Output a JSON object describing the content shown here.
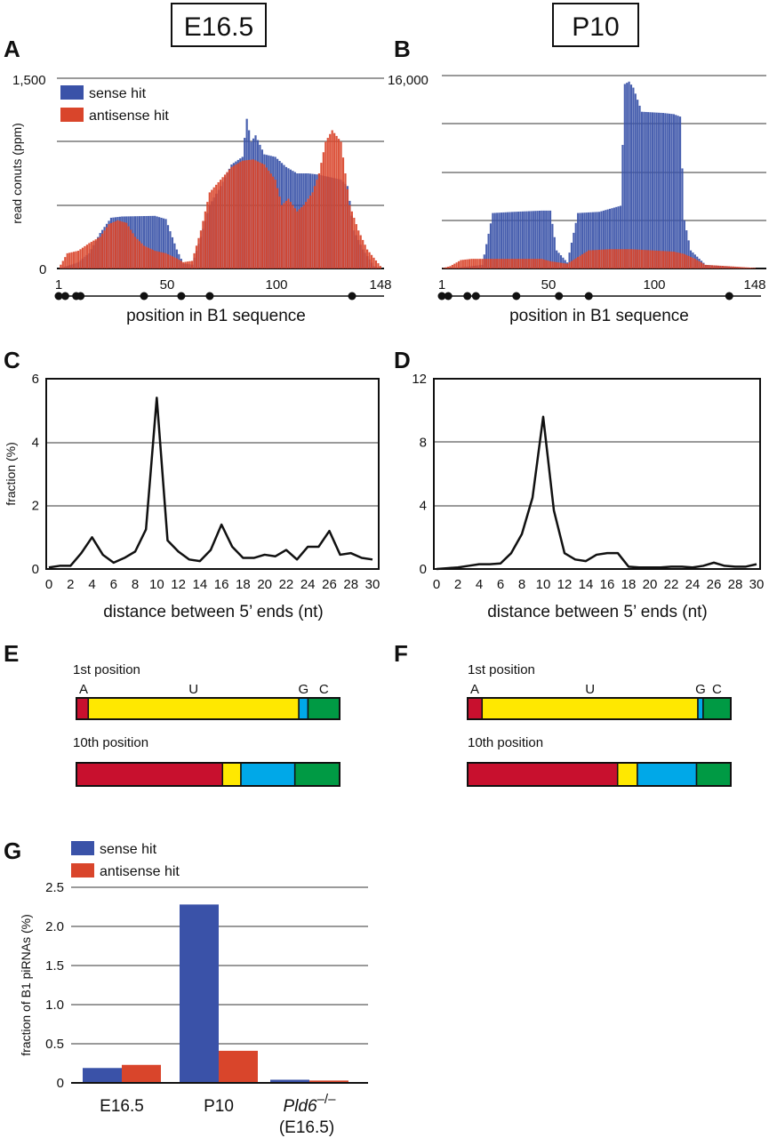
{
  "colors": {
    "sense": "#3a52a8",
    "antisense": "#d9452b",
    "A": "#c8102e",
    "U": "#ffe800",
    "G": "#00a8e8",
    "C": "#009a44",
    "grid": "#9a9a9a",
    "line": "#111111"
  },
  "headers": {
    "left": "E16.5",
    "right": "P10"
  },
  "legend": {
    "sense": "sense hit",
    "antisense": "antisense hit"
  },
  "chart_data": [
    {
      "panel": "A",
      "type": "bar",
      "title": "E16.5",
      "ylabel": "read conuts (ppm)",
      "xlabel": "position in B1 sequence",
      "ylim": [
        0,
        1500
      ],
      "yticks_shown": [
        "0",
        "1,500"
      ],
      "xticks": [
        "1",
        "50",
        "100",
        "148"
      ],
      "series": [
        {
          "name": "sense hit",
          "profile": [
            [
              1,
              0
            ],
            [
              5,
              20
            ],
            [
              10,
              50
            ],
            [
              15,
              120
            ],
            [
              20,
              280
            ],
            [
              25,
              400
            ],
            [
              30,
              410
            ],
            [
              45,
              415
            ],
            [
              50,
              390
            ],
            [
              55,
              150
            ],
            [
              58,
              40
            ],
            [
              62,
              30
            ],
            [
              66,
              250
            ],
            [
              70,
              500
            ],
            [
              75,
              650
            ],
            [
              80,
              820
            ],
            [
              85,
              880
            ],
            [
              87,
              1180
            ],
            [
              89,
              1000
            ],
            [
              91,
              1050
            ],
            [
              95,
              900
            ],
            [
              100,
              880
            ],
            [
              105,
              800
            ],
            [
              110,
              750
            ],
            [
              115,
              750
            ],
            [
              120,
              740
            ],
            [
              125,
              720
            ],
            [
              130,
              700
            ],
            [
              133,
              650
            ],
            [
              136,
              300
            ],
            [
              140,
              150
            ],
            [
              145,
              20
            ],
            [
              148,
              0
            ]
          ]
        },
        {
          "name": "antisense hit",
          "profile": [
            [
              1,
              0
            ],
            [
              5,
              120
            ],
            [
              10,
              140
            ],
            [
              15,
              200
            ],
            [
              20,
              250
            ],
            [
              24,
              350
            ],
            [
              28,
              380
            ],
            [
              32,
              360
            ],
            [
              36,
              250
            ],
            [
              40,
              180
            ],
            [
              45,
              140
            ],
            [
              50,
              120
            ],
            [
              55,
              80
            ],
            [
              58,
              50
            ],
            [
              62,
              60
            ],
            [
              66,
              300
            ],
            [
              70,
              600
            ],
            [
              75,
              700
            ],
            [
              80,
              800
            ],
            [
              85,
              850
            ],
            [
              90,
              860
            ],
            [
              95,
              820
            ],
            [
              100,
              700
            ],
            [
              103,
              500
            ],
            [
              106,
              550
            ],
            [
              110,
              450
            ],
            [
              113,
              500
            ],
            [
              117,
              600
            ],
            [
              120,
              750
            ],
            [
              123,
              1000
            ],
            [
              126,
              1090
            ],
            [
              130,
              1000
            ],
            [
              134,
              500
            ],
            [
              138,
              300
            ],
            [
              142,
              150
            ],
            [
              148,
              20
            ]
          ]
        }
      ],
      "markers": [
        1,
        4,
        9,
        11,
        40,
        57,
        70,
        135
      ]
    },
    {
      "panel": "B",
      "type": "bar",
      "title": "P10",
      "ylabel": "",
      "xlabel": "position in B1 sequence",
      "ylim": [
        0,
        16000
      ],
      "yticks_shown": [
        "16,000"
      ],
      "xticks": [
        "1",
        "50",
        "100",
        "148"
      ],
      "series": [
        {
          "name": "sense hit",
          "profile": [
            [
              1,
              0
            ],
            [
              10,
              100
            ],
            [
              20,
              300
            ],
            [
              25,
              4600
            ],
            [
              35,
              4700
            ],
            [
              48,
              4800
            ],
            [
              52,
              4800
            ],
            [
              55,
              1500
            ],
            [
              60,
              500
            ],
            [
              65,
              4600
            ],
            [
              75,
              4700
            ],
            [
              85,
              5200
            ],
            [
              87,
              15300
            ],
            [
              89,
              15500
            ],
            [
              91,
              15000
            ],
            [
              95,
              13000
            ],
            [
              105,
              12900
            ],
            [
              110,
              12800
            ],
            [
              113,
              12600
            ],
            [
              115,
              4000
            ],
            [
              118,
              1500
            ],
            [
              125,
              300
            ],
            [
              148,
              0
            ]
          ]
        },
        {
          "name": "antisense hit",
          "profile": [
            [
              1,
              0
            ],
            [
              5,
              200
            ],
            [
              10,
              700
            ],
            [
              15,
              800
            ],
            [
              25,
              800
            ],
            [
              35,
              800
            ],
            [
              48,
              800
            ],
            [
              52,
              600
            ],
            [
              60,
              400
            ],
            [
              70,
              1500
            ],
            [
              80,
              1600
            ],
            [
              90,
              1600
            ],
            [
              100,
              1500
            ],
            [
              110,
              1400
            ],
            [
              115,
              1200
            ],
            [
              120,
              800
            ],
            [
              125,
              300
            ],
            [
              135,
              200
            ],
            [
              148,
              50
            ]
          ]
        }
      ],
      "markers": [
        1,
        4,
        13,
        17,
        36,
        56,
        70,
        136
      ]
    },
    {
      "panel": "C",
      "type": "line",
      "title": "",
      "ylabel": "fraction (%)",
      "xlabel": "distance between 5’ ends (nt)",
      "ylim": [
        0,
        6
      ],
      "yticks": [
        0,
        2,
        4,
        6
      ],
      "xticks": [
        0,
        2,
        4,
        6,
        8,
        10,
        12,
        14,
        16,
        18,
        20,
        22,
        24,
        26,
        28,
        30
      ],
      "x": [
        0,
        1,
        2,
        3,
        4,
        5,
        6,
        7,
        8,
        9,
        10,
        11,
        12,
        13,
        14,
        15,
        16,
        17,
        18,
        19,
        20,
        21,
        22,
        23,
        24,
        25,
        26,
        27,
        28,
        29,
        30
      ],
      "y": [
        0.05,
        0.1,
        0.1,
        0.5,
        1.0,
        0.45,
        0.2,
        0.35,
        0.55,
        1.25,
        5.4,
        0.9,
        0.55,
        0.3,
        0.25,
        0.6,
        1.4,
        0.7,
        0.35,
        0.35,
        0.45,
        0.4,
        0.6,
        0.3,
        0.7,
        0.7,
        1.2,
        0.45,
        0.5,
        0.35,
        0.3
      ]
    },
    {
      "panel": "D",
      "type": "line",
      "title": "",
      "ylabel": "",
      "xlabel": "distance between 5’ ends (nt)",
      "ylim": [
        0,
        12
      ],
      "yticks": [
        0,
        4,
        8,
        12
      ],
      "xticks": [
        0,
        2,
        4,
        6,
        8,
        10,
        12,
        14,
        16,
        18,
        20,
        22,
        24,
        26,
        28,
        30
      ],
      "x": [
        0,
        1,
        2,
        3,
        4,
        5,
        6,
        7,
        8,
        9,
        10,
        11,
        12,
        13,
        14,
        15,
        16,
        17,
        18,
        19,
        20,
        21,
        22,
        23,
        24,
        25,
        26,
        27,
        28,
        29,
        30
      ],
      "y": [
        0.0,
        0.05,
        0.1,
        0.2,
        0.3,
        0.3,
        0.35,
        1.0,
        2.2,
        4.5,
        9.6,
        3.7,
        1.0,
        0.6,
        0.5,
        0.9,
        1.0,
        1.0,
        0.15,
        0.1,
        0.1,
        0.1,
        0.15,
        0.15,
        0.1,
        0.2,
        0.4,
        0.2,
        0.15,
        0.15,
        0.3
      ]
    },
    {
      "panel": "E",
      "type": "stacked-bar",
      "rows": [
        {
          "label": "1st position",
          "values": {
            "A": 4.5,
            "U": 80.0,
            "G": 3.5,
            "C": 12.0
          }
        },
        {
          "label": "10th position",
          "values": {
            "A": 55.5,
            "U": 7.0,
            "G": 20.5,
            "C": 17.0
          }
        }
      ],
      "nucleotides": [
        "A",
        "U",
        "G",
        "C"
      ]
    },
    {
      "panel": "F",
      "type": "stacked-bar",
      "rows": [
        {
          "label": "1st position",
          "values": {
            "A": 5.5,
            "U": 82.0,
            "G": 2.0,
            "C": 10.5
          }
        },
        {
          "label": "10th position",
          "values": {
            "A": 57.0,
            "U": 7.5,
            "G": 22.5,
            "C": 13.0
          }
        }
      ],
      "nucleotides": [
        "A",
        "U",
        "G",
        "C"
      ]
    },
    {
      "panel": "G",
      "type": "bar",
      "ylabel": "fraction of B1 piRNAs (%)",
      "ylim": [
        0,
        2.5
      ],
      "yticks": [
        "0",
        "0.5",
        "1.0",
        "1.5",
        "2.0",
        "2.5"
      ],
      "categories": [
        "E16.5",
        "P10",
        "Pld6"
      ],
      "category_sup": [
        "",
        "",
        "–/–"
      ],
      "category_sub": [
        "",
        "",
        "(E16.5)"
      ],
      "series": [
        {
          "name": "sense hit",
          "values": [
            0.19,
            2.28,
            0.04
          ]
        },
        {
          "name": "antisense hit",
          "values": [
            0.23,
            0.41,
            0.03
          ]
        }
      ]
    }
  ]
}
